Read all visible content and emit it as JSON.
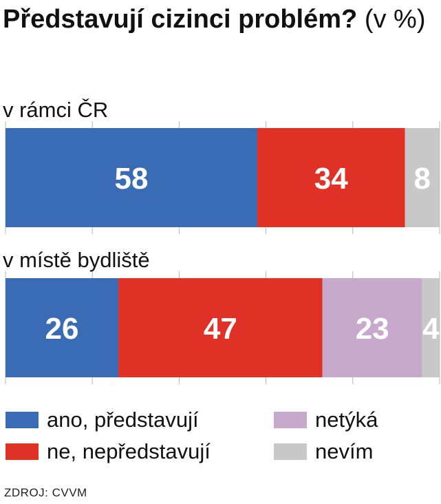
{
  "chart_data": {
    "type": "bar",
    "orientation": "horizontal",
    "stacked": true,
    "title": "Představují cizinci problém?",
    "title_unit": "(v %)",
    "categories": [
      "v rámci ČR",
      "v místě bydliště"
    ],
    "series": [
      {
        "name": "ano, představují",
        "color": "#3a6bb5",
        "values": [
          58,
          26
        ]
      },
      {
        "name": "ne, nepředstavují",
        "color": "#e03127",
        "values": [
          34,
          47
        ]
      },
      {
        "name": "netýká",
        "color": "#c6a9cb",
        "values": [
          0,
          23
        ]
      },
      {
        "name": "nevím",
        "color": "#c8c8c8",
        "values": [
          8,
          4
        ]
      }
    ],
    "xlim": [
      0,
      100
    ],
    "grid": true,
    "legend_position": "bottom"
  },
  "source": "ZDROJ: CVVM"
}
